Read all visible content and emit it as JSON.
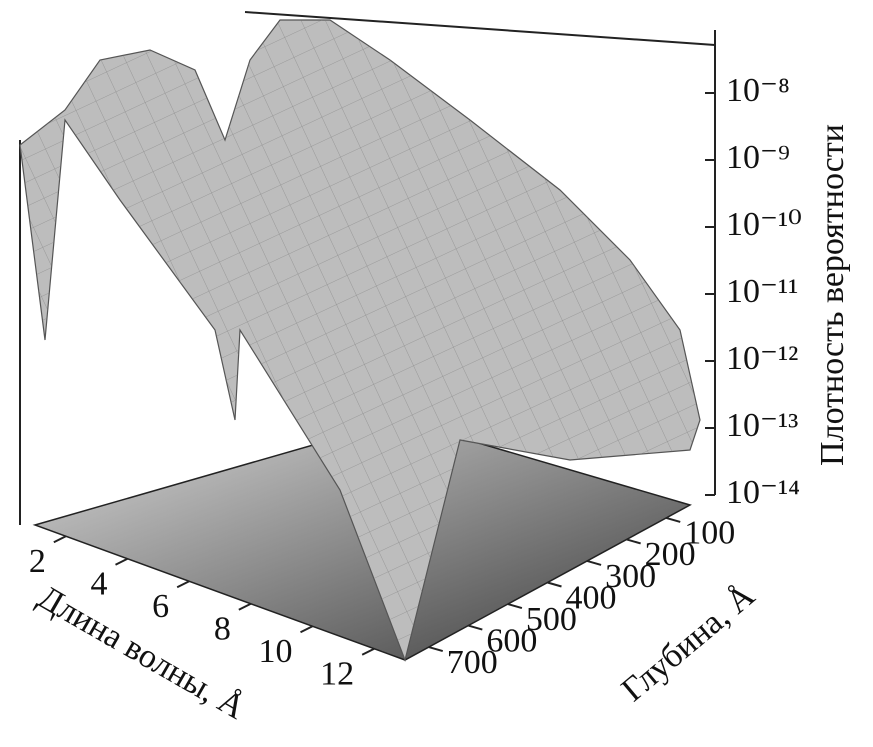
{
  "chart_data": {
    "type": "surface3d",
    "x_label": "Длина волны, Å",
    "y_label": "Глубина, Å",
    "z_label": "Плотность вероятности",
    "xlim": [
      1,
      13
    ],
    "xticks": [
      2,
      4,
      6,
      8,
      10,
      12
    ],
    "ylim": [
      760,
      40
    ],
    "yticks": [
      100,
      200,
      300,
      400,
      500,
      600,
      700
    ],
    "zlim": [
      1e-14,
      1e-07
    ],
    "zscale": "log",
    "zticks": [
      {
        "value": 1e-14,
        "label": "10⁻¹⁴"
      },
      {
        "value": 1e-13,
        "label": "10⁻¹³"
      },
      {
        "value": 1e-12,
        "label": "10⁻¹²"
      },
      {
        "value": 1e-11,
        "label": "10⁻¹¹"
      },
      {
        "value": 1e-10,
        "label": "10⁻¹⁰"
      },
      {
        "value": 1e-09,
        "label": "10⁻⁹"
      },
      {
        "value": 1e-08,
        "label": "10⁻⁸"
      }
    ],
    "surface_color": "#bdbdbd"
  }
}
